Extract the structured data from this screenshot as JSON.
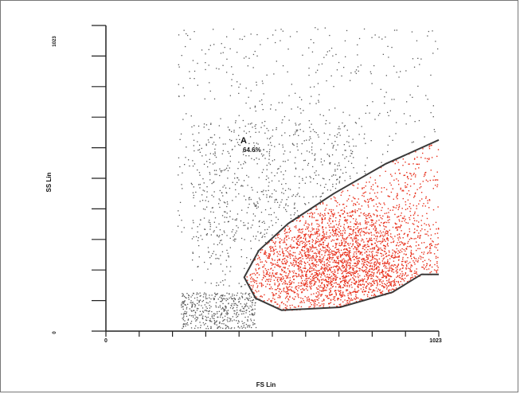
{
  "chart_data": {
    "type": "scatter",
    "title": "",
    "xlabel": "FS Lin",
    "ylabel": "SS Lin",
    "xlim": [
      0,
      1023
    ],
    "ylim": [
      0,
      1023
    ],
    "x_tick_labels": [
      "0",
      "1023"
    ],
    "y_tick_labels": [
      "0",
      "1023"
    ],
    "grid": false,
    "gate": {
      "name": "A",
      "percent_label": "64.6%",
      "color": "#e8321e",
      "polygon": [
        [
          1023,
          640
        ],
        [
          860,
          560
        ],
        [
          700,
          460
        ],
        [
          560,
          360
        ],
        [
          470,
          270
        ],
        [
          425,
          180
        ],
        [
          460,
          110
        ],
        [
          540,
          70
        ],
        [
          720,
          80
        ],
        [
          880,
          130
        ],
        [
          970,
          190
        ],
        [
          1023,
          190
        ]
      ]
    },
    "series": [
      {
        "name": "A",
        "color": "#e8321e",
        "role": "gated",
        "point_density": "high",
        "center": [
          720,
          230
        ]
      },
      {
        "color": "#555555",
        "role": "ungated",
        "point_density": "low"
      }
    ]
  }
}
